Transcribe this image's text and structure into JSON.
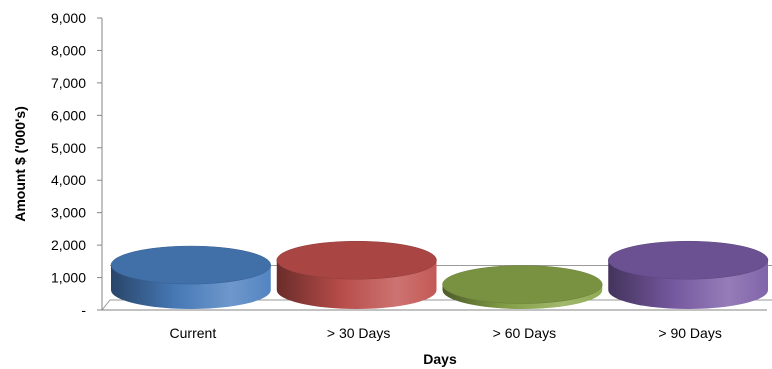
{
  "chart_data": {
    "type": "bar",
    "style": "3d-cylinder",
    "title": "",
    "xlabel": "Days",
    "ylabel": "Amount $ ('000's)",
    "ylim": [
      0,
      9000
    ],
    "yticks": [
      0,
      1000,
      2000,
      3000,
      4000,
      5000,
      6000,
      7000,
      8000,
      9000
    ],
    "ytick_labels": [
      "-",
      "1,000",
      "2,000",
      "3,000",
      "4,000",
      "5,000",
      "6,000",
      "7,000",
      "8,000",
      "9,000"
    ],
    "categories": [
      "Current",
      "> 30 Days",
      "> 60 Days",
      "> 90 Days"
    ],
    "values": [
      1200,
      1350,
      600,
      1350
    ],
    "colors": [
      "#4a7ebf",
      "#c0504d",
      "#8aa64a",
      "#7a5ca6"
    ],
    "grid": false,
    "legend": "none"
  }
}
